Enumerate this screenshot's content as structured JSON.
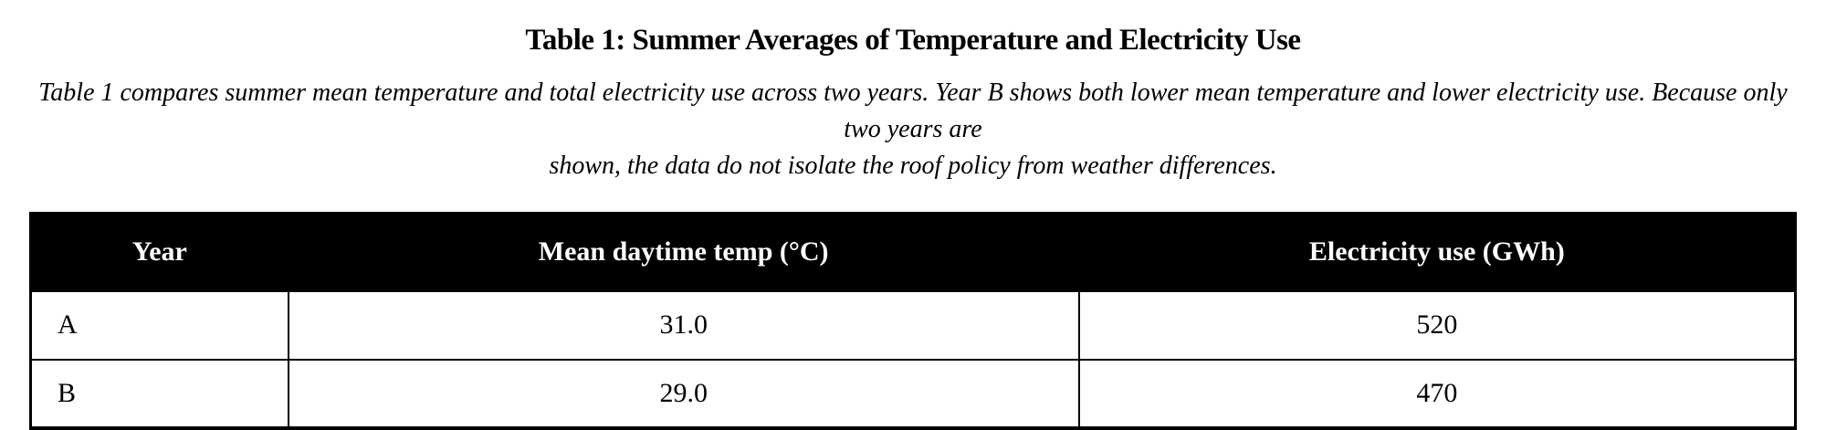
{
  "title": "Table 1: Summer Averages of Temperature and Electricity Use",
  "caption": {
    "full_text": "Table 1 compares summer mean temperature and total electricity use across two years. Year B shows both lower mean temperature and lower electricity use. Because only two years are shown, the data do not isolate the roof policy from weather differences.",
    "line1": "Table 1 compares summer mean temperature and total electricity use across two years. Year B shows both lower mean temperature and lower electricity use. Because only two years are",
    "line2": "shown, the data do not isolate the roof policy from weather differences."
  },
  "table": {
    "columns": [
      "Year",
      "Mean daytime temp (°C)",
      "Electricity use (GWh)"
    ],
    "rows": [
      {
        "year": "A",
        "temp": "31.0",
        "electricity": "520"
      },
      {
        "year": "B",
        "temp": "29.0",
        "electricity": "470"
      }
    ]
  },
  "colors": {
    "header_background": "#000000",
    "header_text": "#ffffff",
    "body_text": "#000000",
    "border": "#000000",
    "page_background": "#ffffff"
  }
}
